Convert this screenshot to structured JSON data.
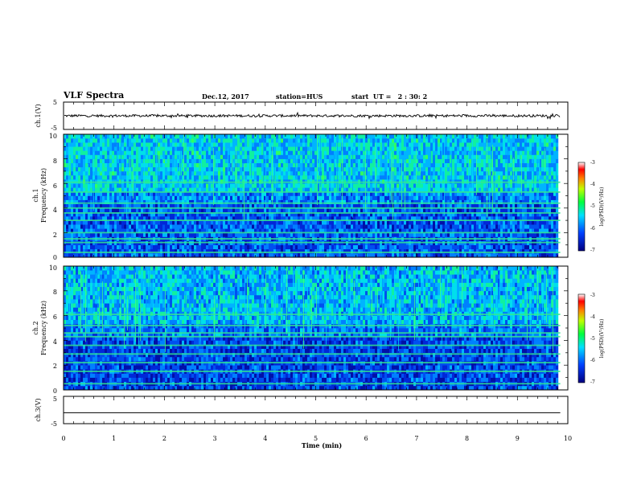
{
  "header": {
    "title": "VLF Spectra",
    "date": "Dec.12, 2017",
    "station": "station=HUS",
    "start": "start  UT =   2 : 30: 2"
  },
  "chart_data": [
    {
      "type": "line",
      "panel": "ch1-waveform",
      "ylabel": "ch.1(V)",
      "ylim": [
        -5,
        5
      ],
      "yticks": [
        "5",
        "-5"
      ],
      "series": [
        {
          "values_description_level": 0
        }
      ]
    },
    {
      "type": "heatmap",
      "panel": "ch1-spectrogram",
      "ylabel": "ch.1",
      "ylabel2": "Frequency (kHz)",
      "ylim": [
        0,
        10
      ],
      "yticks": [
        "0",
        "2",
        "4",
        "6",
        "8",
        "10"
      ],
      "colorbar": {
        "label": "log(PSD)(V²/Hz)",
        "ticks": [
          "-3",
          "-4",
          "-5",
          "-6",
          "-7"
        ],
        "range": [
          -7,
          -3
        ]
      },
      "bands_khz": [
        0.4,
        1.2,
        1.5,
        2.0,
        3.0,
        3.6,
        4.0,
        4.4,
        5.3,
        6.1
      ]
    },
    {
      "type": "heatmap",
      "panel": "ch2-spectrogram",
      "ylabel": "ch.2",
      "ylabel2": "Frequency (kHz)",
      "ylim": [
        0,
        10
      ],
      "yticks": [
        "0",
        "2",
        "4",
        "6",
        "8",
        "10"
      ],
      "colorbar": {
        "label": "log(PSD)(V²/Hz)",
        "ticks": [
          "-3",
          "-4",
          "-5",
          "-6",
          "-7"
        ],
        "range": [
          -7,
          -3
        ]
      },
      "bands_khz": [
        0.5,
        1.5,
        2.2,
        2.9,
        3.6,
        4.3,
        4.6,
        5.2,
        6.1
      ]
    },
    {
      "type": "line",
      "panel": "ch3-waveform",
      "ylabel": "ch.3(V)",
      "ylim": [
        -5,
        5
      ],
      "yticks": [
        "5",
        "-5"
      ],
      "series": [
        {
          "constant": -1
        }
      ]
    }
  ],
  "xaxis": {
    "label": "Time (min)",
    "xlim": [
      0,
      10
    ],
    "ticks": [
      "0",
      "1",
      "2",
      "3",
      "4",
      "5",
      "6",
      "7",
      "8",
      "9",
      "10"
    ],
    "data_end": 9.85
  },
  "colors": {
    "lo": "#00007f",
    "mid": "#00ff66",
    "hi": "#cc0000"
  }
}
